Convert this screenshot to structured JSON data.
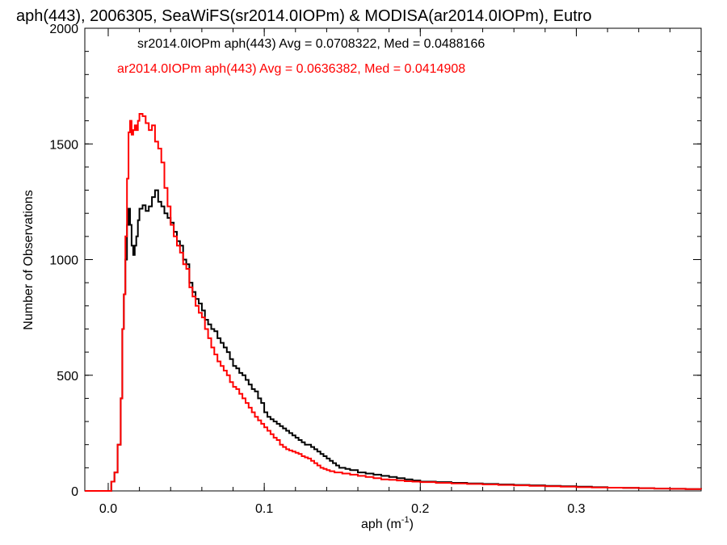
{
  "chart_data": {
    "type": "line",
    "title": "aph(443), 2006305, SeaWiFS(sr2014.0IOPm) & MODISA(ar2014.0IOPm), Eutro",
    "xlabel_main": "aph (m",
    "xlabel_sup": "-1",
    "xlabel_close": ")",
    "ylabel": "Number of Observations",
    "xlim": [
      -0.015,
      0.38
    ],
    "ylim": [
      0,
      2000
    ],
    "x_ticks": [
      0.0,
      0.1,
      0.2,
      0.3
    ],
    "x_tick_labels": [
      "0.0",
      "0.1",
      "0.2",
      "0.3"
    ],
    "x_minor_step": 0.02,
    "y_ticks": [
      0,
      500,
      1000,
      1500,
      2000
    ],
    "y_tick_labels": [
      "0",
      "500",
      "1000",
      "1500",
      "2000"
    ],
    "y_minor_step": 100,
    "grid": false,
    "legend_placement": "top-left",
    "series": [
      {
        "name": "sr2014.0IOPm",
        "legend": "sr2014.0IOPm aph(443) Avg = 0.0708322, Med = 0.0488166",
        "color": "#000000",
        "points": [
          [
            -0.015,
            0
          ],
          [
            0.0,
            0
          ],
          [
            0.002,
            40
          ],
          [
            0.004,
            80
          ],
          [
            0.006,
            200
          ],
          [
            0.008,
            400
          ],
          [
            0.009,
            700
          ],
          [
            0.01,
            850
          ],
          [
            0.011,
            1000
          ],
          [
            0.012,
            1150
          ],
          [
            0.013,
            1220
          ],
          [
            0.014,
            1150
          ],
          [
            0.015,
            1060
          ],
          [
            0.016,
            1020
          ],
          [
            0.017,
            1060
          ],
          [
            0.018,
            1100
          ],
          [
            0.019,
            1170
          ],
          [
            0.02,
            1220
          ],
          [
            0.022,
            1235
          ],
          [
            0.024,
            1210
          ],
          [
            0.026,
            1230
          ],
          [
            0.028,
            1270
          ],
          [
            0.03,
            1300
          ],
          [
            0.032,
            1250
          ],
          [
            0.034,
            1230
          ],
          [
            0.036,
            1200
          ],
          [
            0.038,
            1180
          ],
          [
            0.04,
            1160
          ],
          [
            0.042,
            1120
          ],
          [
            0.044,
            1080
          ],
          [
            0.046,
            1060
          ],
          [
            0.048,
            1000
          ],
          [
            0.05,
            980
          ],
          [
            0.052,
            900
          ],
          [
            0.054,
            860
          ],
          [
            0.056,
            830
          ],
          [
            0.058,
            810
          ],
          [
            0.06,
            780
          ],
          [
            0.062,
            740
          ],
          [
            0.064,
            720
          ],
          [
            0.066,
            700
          ],
          [
            0.068,
            690
          ],
          [
            0.07,
            660
          ],
          [
            0.072,
            640
          ],
          [
            0.074,
            620
          ],
          [
            0.076,
            600
          ],
          [
            0.078,
            570
          ],
          [
            0.08,
            540
          ],
          [
            0.082,
            530
          ],
          [
            0.084,
            510
          ],
          [
            0.086,
            500
          ],
          [
            0.088,
            480
          ],
          [
            0.09,
            460
          ],
          [
            0.092,
            440
          ],
          [
            0.094,
            430
          ],
          [
            0.096,
            400
          ],
          [
            0.098,
            380
          ],
          [
            0.1,
            340
          ],
          [
            0.102,
            320
          ],
          [
            0.104,
            310
          ],
          [
            0.106,
            300
          ],
          [
            0.108,
            290
          ],
          [
            0.11,
            280
          ],
          [
            0.112,
            270
          ],
          [
            0.114,
            260
          ],
          [
            0.116,
            250
          ],
          [
            0.118,
            240
          ],
          [
            0.12,
            230
          ],
          [
            0.122,
            220
          ],
          [
            0.124,
            210
          ],
          [
            0.126,
            200
          ],
          [
            0.128,
            200
          ],
          [
            0.13,
            190
          ],
          [
            0.132,
            180
          ],
          [
            0.134,
            170
          ],
          [
            0.136,
            160
          ],
          [
            0.138,
            150
          ],
          [
            0.14,
            140
          ],
          [
            0.142,
            130
          ],
          [
            0.144,
            120
          ],
          [
            0.146,
            110
          ],
          [
            0.148,
            100
          ],
          [
            0.15,
            100
          ],
          [
            0.152,
            95
          ],
          [
            0.155,
            90
          ],
          [
            0.16,
            80
          ],
          [
            0.165,
            75
          ],
          [
            0.17,
            70
          ],
          [
            0.175,
            65
          ],
          [
            0.18,
            60
          ],
          [
            0.185,
            55
          ],
          [
            0.19,
            50
          ],
          [
            0.195,
            45
          ],
          [
            0.2,
            40
          ],
          [
            0.21,
            38
          ],
          [
            0.22,
            35
          ],
          [
            0.23,
            32
          ],
          [
            0.24,
            30
          ],
          [
            0.25,
            28
          ],
          [
            0.26,
            26
          ],
          [
            0.27,
            24
          ],
          [
            0.28,
            22
          ],
          [
            0.29,
            20
          ],
          [
            0.3,
            18
          ],
          [
            0.31,
            16
          ],
          [
            0.32,
            14
          ],
          [
            0.33,
            13
          ],
          [
            0.34,
            12
          ],
          [
            0.35,
            10
          ],
          [
            0.36,
            9
          ],
          [
            0.37,
            8
          ],
          [
            0.38,
            7
          ]
        ]
      },
      {
        "name": "ar2014.0IOPm",
        "legend": "ar2014.0IOPm aph(443) Avg = 0.0636382, Med = 0.0414908",
        "color": "#ff0000",
        "points": [
          [
            -0.015,
            0
          ],
          [
            0.0,
            0
          ],
          [
            0.002,
            40
          ],
          [
            0.004,
            80
          ],
          [
            0.006,
            200
          ],
          [
            0.008,
            400
          ],
          [
            0.009,
            700
          ],
          [
            0.01,
            850
          ],
          [
            0.011,
            1100
          ],
          [
            0.012,
            1350
          ],
          [
            0.013,
            1550
          ],
          [
            0.014,
            1600
          ],
          [
            0.015,
            1540
          ],
          [
            0.016,
            1560
          ],
          [
            0.017,
            1580
          ],
          [
            0.018,
            1560
          ],
          [
            0.019,
            1600
          ],
          [
            0.02,
            1630
          ],
          [
            0.022,
            1620
          ],
          [
            0.024,
            1590
          ],
          [
            0.026,
            1560
          ],
          [
            0.028,
            1580
          ],
          [
            0.03,
            1510
          ],
          [
            0.032,
            1480
          ],
          [
            0.034,
            1420
          ],
          [
            0.036,
            1310
          ],
          [
            0.038,
            1230
          ],
          [
            0.04,
            1150
          ],
          [
            0.042,
            1100
          ],
          [
            0.044,
            1060
          ],
          [
            0.046,
            1030
          ],
          [
            0.048,
            980
          ],
          [
            0.05,
            960
          ],
          [
            0.052,
            880
          ],
          [
            0.054,
            840
          ],
          [
            0.056,
            800
          ],
          [
            0.058,
            770
          ],
          [
            0.06,
            750
          ],
          [
            0.062,
            700
          ],
          [
            0.064,
            660
          ],
          [
            0.066,
            620
          ],
          [
            0.068,
            590
          ],
          [
            0.07,
            560
          ],
          [
            0.072,
            540
          ],
          [
            0.074,
            520
          ],
          [
            0.076,
            500
          ],
          [
            0.078,
            470
          ],
          [
            0.08,
            450
          ],
          [
            0.082,
            440
          ],
          [
            0.084,
            420
          ],
          [
            0.086,
            400
          ],
          [
            0.088,
            380
          ],
          [
            0.09,
            360
          ],
          [
            0.092,
            340
          ],
          [
            0.094,
            320
          ],
          [
            0.096,
            305
          ],
          [
            0.098,
            290
          ],
          [
            0.1,
            275
          ],
          [
            0.102,
            260
          ],
          [
            0.104,
            245
          ],
          [
            0.106,
            230
          ],
          [
            0.108,
            220
          ],
          [
            0.11,
            200
          ],
          [
            0.112,
            190
          ],
          [
            0.114,
            180
          ],
          [
            0.116,
            175
          ],
          [
            0.118,
            170
          ],
          [
            0.12,
            165
          ],
          [
            0.122,
            160
          ],
          [
            0.124,
            150
          ],
          [
            0.126,
            145
          ],
          [
            0.128,
            140
          ],
          [
            0.13,
            130
          ],
          [
            0.132,
            120
          ],
          [
            0.134,
            110
          ],
          [
            0.136,
            100
          ],
          [
            0.138,
            95
          ],
          [
            0.14,
            90
          ],
          [
            0.142,
            85
          ],
          [
            0.145,
            80
          ],
          [
            0.15,
            75
          ],
          [
            0.155,
            70
          ],
          [
            0.16,
            65
          ],
          [
            0.165,
            60
          ],
          [
            0.17,
            55
          ],
          [
            0.175,
            50
          ],
          [
            0.18,
            48
          ],
          [
            0.185,
            45
          ],
          [
            0.19,
            42
          ],
          [
            0.195,
            40
          ],
          [
            0.2,
            38
          ],
          [
            0.21,
            35
          ],
          [
            0.22,
            32
          ],
          [
            0.23,
            30
          ],
          [
            0.24,
            28
          ],
          [
            0.25,
            26
          ],
          [
            0.26,
            24
          ],
          [
            0.27,
            22
          ],
          [
            0.28,
            20
          ],
          [
            0.29,
            18
          ],
          [
            0.3,
            16
          ],
          [
            0.31,
            15
          ],
          [
            0.32,
            14
          ],
          [
            0.33,
            13
          ],
          [
            0.34,
            12
          ],
          [
            0.35,
            10
          ],
          [
            0.36,
            9
          ],
          [
            0.37,
            8
          ],
          [
            0.38,
            7
          ]
        ]
      }
    ]
  }
}
